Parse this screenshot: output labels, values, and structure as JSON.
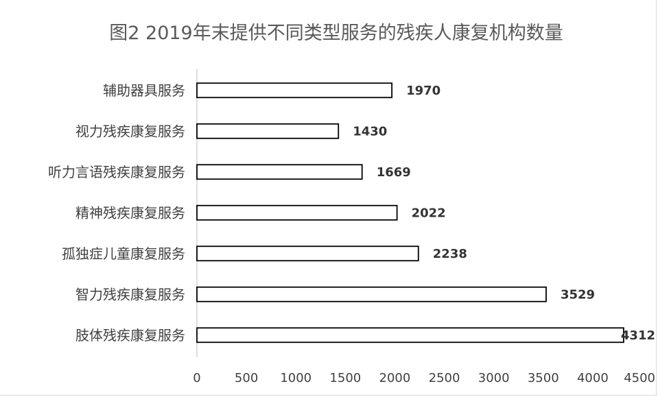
{
  "chart_data": {
    "type": "bar",
    "orientation": "horizontal",
    "title": "图2  2019年末提供不同类型服务的残疾人康复机构数量",
    "categories": [
      "辅助器具服务",
      "视力残疾康复服务",
      "听力言语残疾康复服务",
      "精神残疾康复服务",
      "孤独症儿童康复服务",
      "智力残疾康复服务",
      "肢体残疾康复服务"
    ],
    "values": [
      1970,
      1430,
      1669,
      2022,
      2238,
      3529,
      4312
    ],
    "xlim": [
      0,
      4500
    ],
    "xticks": [
      0,
      500,
      1000,
      1500,
      2000,
      2500,
      3000,
      3500,
      4000,
      4500
    ],
    "xlabel": "",
    "ylabel": "",
    "grid": false,
    "legend": "none",
    "bar_fill": "#ffffff",
    "bar_stroke": "#000000"
  }
}
